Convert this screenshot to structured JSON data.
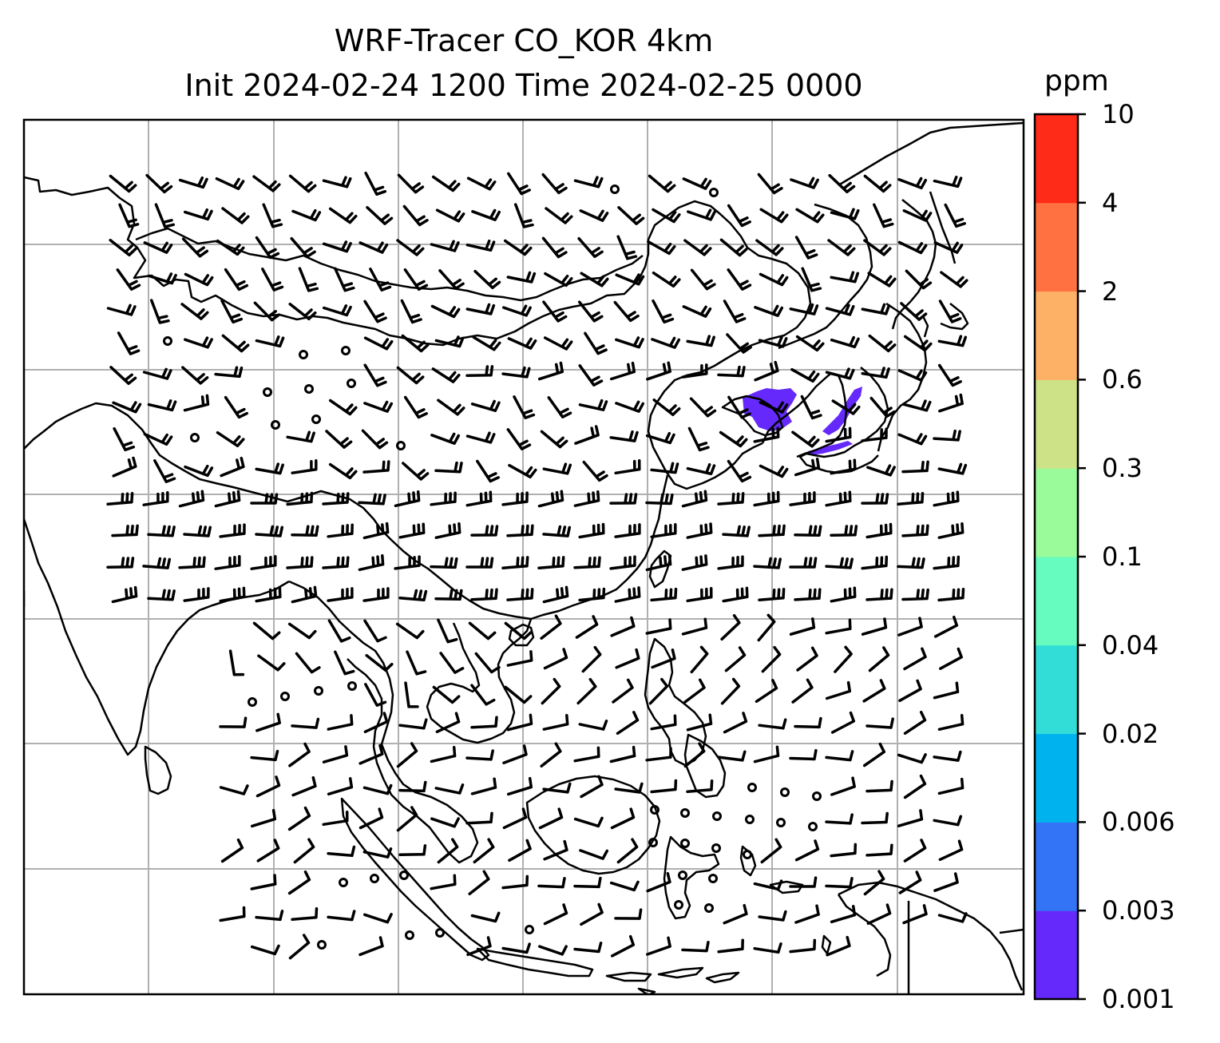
{
  "title": {
    "line1": "WRF-Tracer CO_KOR 4km",
    "line2": "Init 2024-02-24 1200 Time 2024-02-25 0000"
  },
  "colorbar": {
    "unit": "ppm",
    "tick_labels": [
      "0.001",
      "0.003",
      "0.006",
      "0.02",
      "0.04",
      "0.1",
      "0.3",
      "0.6",
      "2",
      "4",
      "10"
    ],
    "colors": [
      "#6629fb",
      "#3374f6",
      "#00b3ee",
      "#31ddd6",
      "#66fbbf",
      "#99fb9a",
      "#cde286",
      "#fdb167",
      "#ff7140",
      "#ff2b19"
    ]
  },
  "map": {
    "projection_grid": "on",
    "coastlines": "on",
    "wind_barbs": "on",
    "tracer_field_color": "#6629fb"
  }
}
